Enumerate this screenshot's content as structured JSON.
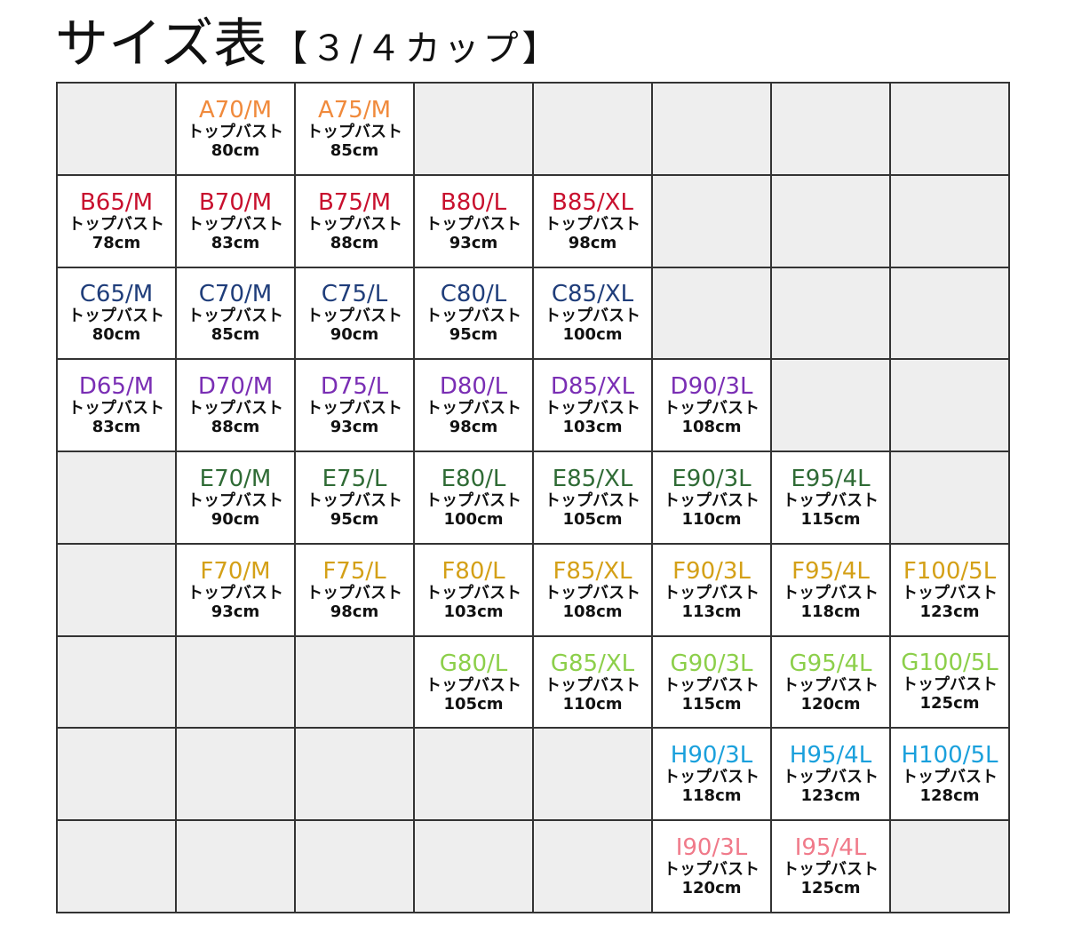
{
  "title": {
    "main": "サイズ表",
    "sub": "【３/４カップ】"
  },
  "measure_label": "トップバスト",
  "cup_colors": {
    "A": "#f08a3c",
    "B": "#c8102e",
    "C": "#1f3d7a",
    "D": "#7a2eb4",
    "E": "#2f6b35",
    "F": "#d4a017",
    "G": "#8ccf4a",
    "H": "#1aa0dc",
    "I": "#f07a8a"
  },
  "rows": [
    [
      null,
      {
        "cup": "A",
        "size": "A70/M",
        "bust": "80cm"
      },
      {
        "cup": "A",
        "size": "A75/M",
        "bust": "85cm"
      },
      null,
      null,
      null,
      null,
      null
    ],
    [
      {
        "cup": "B",
        "size": "B65/M",
        "bust": "78cm"
      },
      {
        "cup": "B",
        "size": "B70/M",
        "bust": "83cm"
      },
      {
        "cup": "B",
        "size": "B75/M",
        "bust": "88cm"
      },
      {
        "cup": "B",
        "size": "B80/L",
        "bust": "93cm"
      },
      {
        "cup": "B",
        "size": "B85/XL",
        "bust": "98cm"
      },
      null,
      null,
      null
    ],
    [
      {
        "cup": "C",
        "size": "C65/M",
        "bust": "80cm"
      },
      {
        "cup": "C",
        "size": "C70/M",
        "bust": "85cm"
      },
      {
        "cup": "C",
        "size": "C75/L",
        "bust": "90cm"
      },
      {
        "cup": "C",
        "size": "C80/L",
        "bust": "95cm"
      },
      {
        "cup": "C",
        "size": "C85/XL",
        "bust": "100cm"
      },
      null,
      null,
      null
    ],
    [
      {
        "cup": "D",
        "size": "D65/M",
        "bust": "83cm"
      },
      {
        "cup": "D",
        "size": "D70/M",
        "bust": "88cm"
      },
      {
        "cup": "D",
        "size": "D75/L",
        "bust": "93cm"
      },
      {
        "cup": "D",
        "size": "D80/L",
        "bust": "98cm"
      },
      {
        "cup": "D",
        "size": "D85/XL",
        "bust": "103cm"
      },
      {
        "cup": "D",
        "size": "D90/3L",
        "bust": "108cm"
      },
      null,
      null
    ],
    [
      null,
      {
        "cup": "E",
        "size": "E70/M",
        "bust": "90cm"
      },
      {
        "cup": "E",
        "size": "E75/L",
        "bust": "95cm"
      },
      {
        "cup": "E",
        "size": "E80/L",
        "bust": "100cm"
      },
      {
        "cup": "E",
        "size": "E85/XL",
        "bust": "105cm"
      },
      {
        "cup": "E",
        "size": "E90/3L",
        "bust": "110cm"
      },
      {
        "cup": "E",
        "size": "E95/4L",
        "bust": "115cm"
      },
      null
    ],
    [
      null,
      {
        "cup": "F",
        "size": "F70/M",
        "bust": "93cm"
      },
      {
        "cup": "F",
        "size": "F75/L",
        "bust": "98cm"
      },
      {
        "cup": "F",
        "size": "F80/L",
        "bust": "103cm"
      },
      {
        "cup": "F",
        "size": "F85/XL",
        "bust": "108cm"
      },
      {
        "cup": "F",
        "size": "F90/3L",
        "bust": "113cm"
      },
      {
        "cup": "F",
        "size": "F95/4L",
        "bust": "118cm"
      },
      {
        "cup": "F",
        "size": "F100/5L",
        "bust": "123cm"
      }
    ],
    [
      null,
      null,
      null,
      {
        "cup": "G",
        "size": "G80/L",
        "bust": "105cm"
      },
      {
        "cup": "G",
        "size": "G85/XL",
        "bust": "110cm"
      },
      {
        "cup": "G",
        "size": "G90/3L",
        "bust": "115cm"
      },
      {
        "cup": "G",
        "size": "G95/4L",
        "bust": "120cm"
      },
      {
        "cup": "G",
        "size": "G100/5L",
        "bust": "125cm",
        "wrap": true
      }
    ],
    [
      null,
      null,
      null,
      null,
      null,
      {
        "cup": "H",
        "size": "H90/3L",
        "bust": "118cm"
      },
      {
        "cup": "H",
        "size": "H95/4L",
        "bust": "123cm"
      },
      {
        "cup": "H",
        "size": "H100/5L",
        "bust": "128cm",
        "wrap": true
      }
    ],
    [
      null,
      null,
      null,
      null,
      null,
      {
        "cup": "I",
        "size": "I90/3L",
        "bust": "120cm"
      },
      {
        "cup": "I",
        "size": "I95/4L",
        "bust": "125cm"
      },
      null
    ]
  ]
}
